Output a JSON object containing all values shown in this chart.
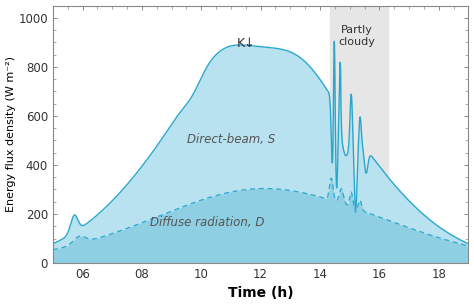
{
  "xlabel": "Time (h)",
  "ylabel": "Energy flux density (W m⁻²)",
  "xlim": [
    5.0,
    19.0
  ],
  "ylim": [
    0,
    1050
  ],
  "yticks": [
    0,
    200,
    400,
    600,
    800,
    1000
  ],
  "xticks": [
    6,
    8,
    10,
    12,
    14,
    16,
    18
  ],
  "xtick_labels": [
    "06",
    "08",
    "10",
    "12",
    "14",
    "16",
    "18"
  ],
  "line_color": "#29a8cc",
  "fill_color": "#b8e2ef",
  "fill_color2": "#8ecfe3",
  "dashed_color": "#29a8cc",
  "partly_cloudy_start": 14.35,
  "partly_cloudy_end": 16.3,
  "partly_cloudy_color": "#e6e6e6",
  "label_direct": "Direct-beam, S",
  "label_diffuse": "Diffuse radiation, D",
  "label_K": "K↓",
  "label_partly_cloudy": "Partly\ncloudy",
  "background_color": "#ffffff"
}
